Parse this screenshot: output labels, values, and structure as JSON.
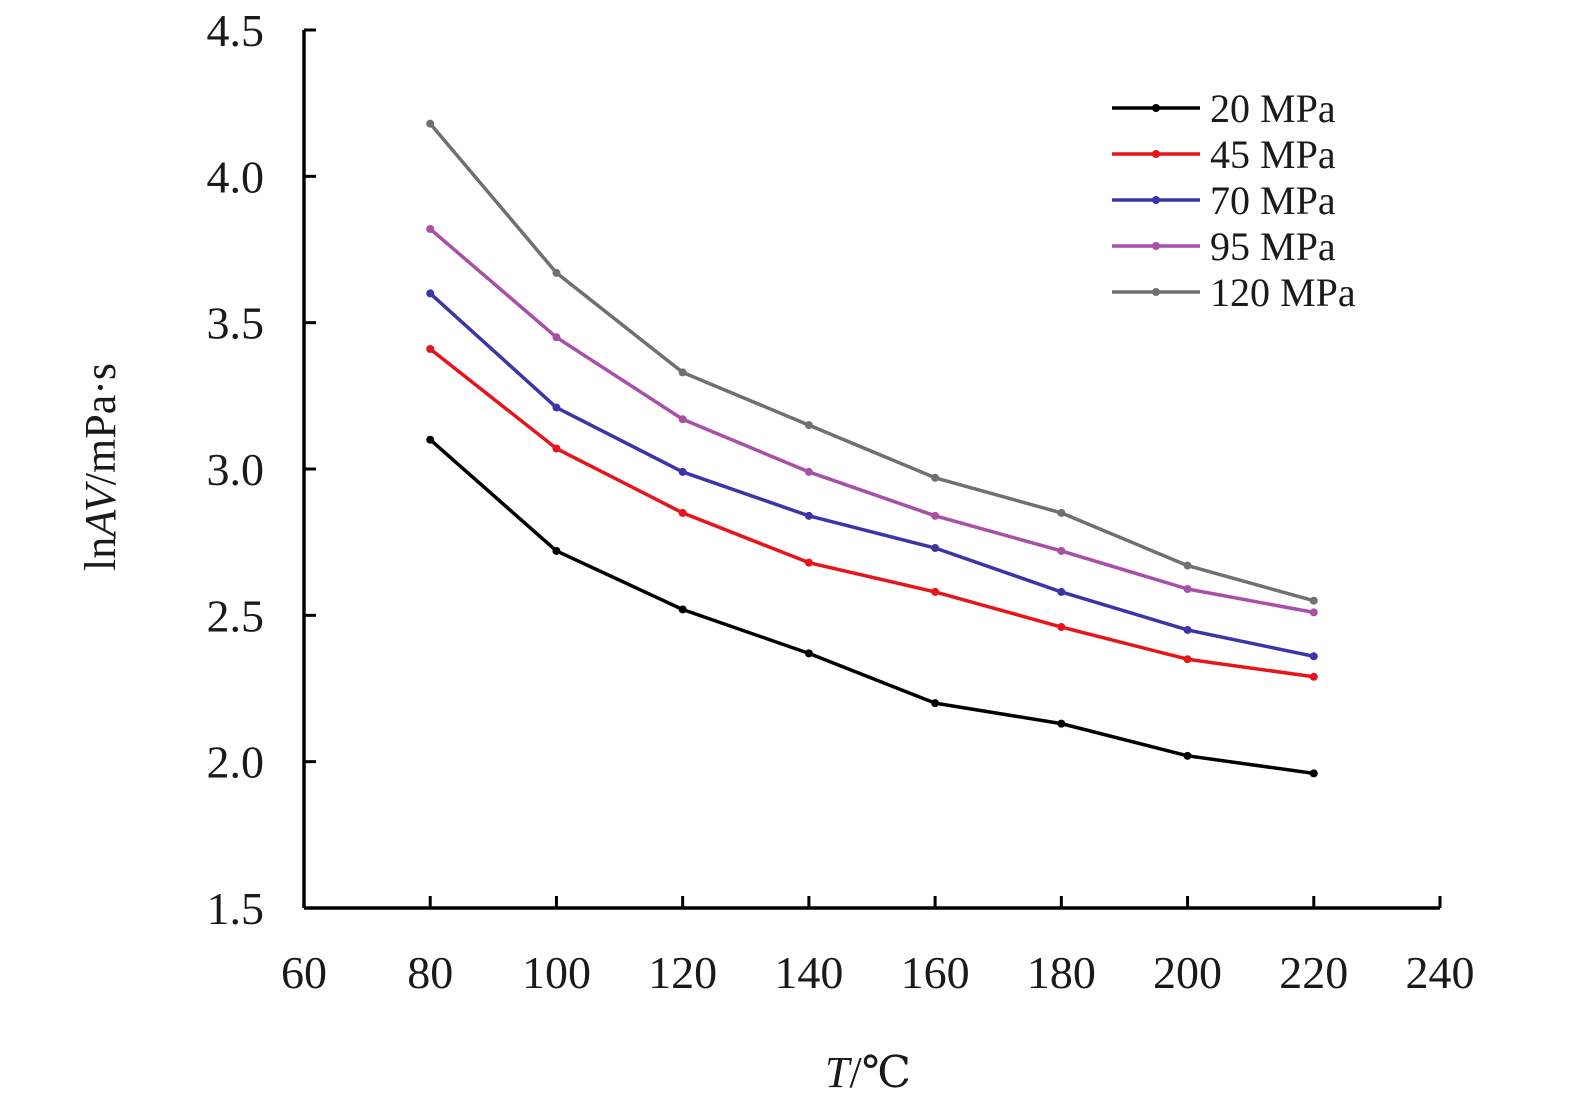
{
  "chart_data": {
    "type": "line",
    "x_tick_labels": [
      "60",
      "80",
      "100",
      "120",
      "140",
      "160",
      "180",
      "200",
      "220",
      "240"
    ],
    "y_tick_labels": [
      "1.5",
      "2.0",
      "2.5",
      "3.0",
      "3.5",
      "4.0",
      "4.5"
    ],
    "xlim": [
      60,
      240
    ],
    "ylim": [
      1.5,
      4.5
    ],
    "xlabel": {
      "italic": "T",
      "rest": "/℃"
    },
    "ylabel": {
      "prefix": "ln",
      "italic": "AV",
      "rest": "/mPa·s"
    },
    "legend_position": "top-right",
    "grid": false,
    "x": [
      80,
      100,
      120,
      140,
      160,
      180,
      200,
      220
    ],
    "series": [
      {
        "name": "20 MPa",
        "color": "#000000",
        "values": [
          3.1,
          2.72,
          2.52,
          2.37,
          2.2,
          2.13,
          2.02,
          1.96
        ]
      },
      {
        "name": "45 MPa",
        "color": "#e8141c",
        "values": [
          3.41,
          3.07,
          2.85,
          2.68,
          2.58,
          2.46,
          2.35,
          2.29
        ]
      },
      {
        "name": "70 MPa",
        "color": "#3a35a8",
        "values": [
          3.6,
          3.21,
          2.99,
          2.84,
          2.73,
          2.58,
          2.45,
          2.36
        ]
      },
      {
        "name": "95 MPa",
        "color": "#a94fa8",
        "values": [
          3.82,
          3.45,
          3.17,
          2.99,
          2.84,
          2.72,
          2.59,
          2.51
        ]
      },
      {
        "name": "120 MPa",
        "color": "#707070",
        "values": [
          4.18,
          3.67,
          3.33,
          3.15,
          2.97,
          2.85,
          2.67,
          2.55
        ]
      }
    ]
  }
}
